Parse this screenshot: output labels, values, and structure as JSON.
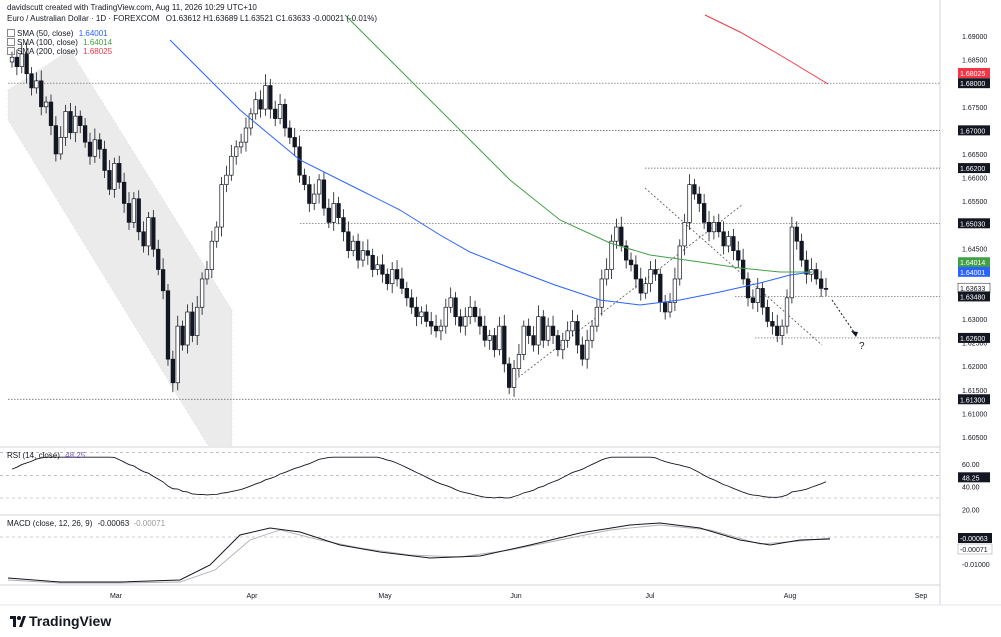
{
  "header": {
    "credit": "davidscutt created with TradingView.com, Aug 11, 2026 10:29 UTC+10",
    "symbol_line": "Euro / Australian Dollar · 1D · FOREXCOM",
    "ohlc": "O1.63612 H1.63689 L1.63521 C1.63633 -0.00021 (-0.01%)"
  },
  "indicators": [
    {
      "label": "SMA (50, close)",
      "value": "1.64001",
      "color": "#2962ff"
    },
    {
      "label": "SMA (100, close)",
      "value": "1.64014",
      "color": "#43a047"
    },
    {
      "label": "SMA (200, close)",
      "value": "1.68025",
      "color": "#f23645"
    }
  ],
  "rsi": {
    "label": "RSI (14, close)",
    "value": "48.25"
  },
  "macd": {
    "label": "MACD (close, 12, 26, 9)",
    "value1": "-0.00063",
    "value2": "-0.00071"
  },
  "logo": "TradingView",
  "question_mark": "?",
  "colors": {
    "up": "#ffffff",
    "down": "#131722",
    "sma50": "#2962ff",
    "sma100": "#43a047",
    "sma200": "#f23645",
    "grid": "#e6e6e6",
    "channel": "#e8e8e8"
  },
  "chart_data": {
    "type": "candlestick",
    "title": "Euro / Australian Dollar · 1D · FOREXCOM",
    "x_tick_labels": [
      "Mar",
      "Apr",
      "May",
      "Jun",
      "Jul",
      "Aug",
      "Sep"
    ],
    "y_tick_labels": [
      "1.69000",
      "1.68500",
      "1.68000",
      "1.67500",
      "1.67000",
      "1.66500",
      "1.66000",
      "1.65500",
      "1.65000",
      "1.64500",
      "1.64000",
      "1.63500",
      "1.63000",
      "1.62500",
      "1.62000",
      "1.61500",
      "1.61000",
      "1.60500"
    ],
    "ylim": [
      1.6025,
      1.6925
    ],
    "horizontal_levels": [
      1.68,
      1.67,
      1.662,
      1.6503,
      1.6348,
      1.626,
      1.613
    ],
    "price_labels": [
      {
        "text": "1.68025",
        "value": 1.68025,
        "color": "#f23645"
      },
      {
        "text": "1.68000",
        "value": 1.68,
        "color": "#131722"
      },
      {
        "text": "1.67000",
        "value": 1.67,
        "color": "#131722"
      },
      {
        "text": "1.66200",
        "value": 1.662,
        "color": "#131722"
      },
      {
        "text": "1.65030",
        "value": 1.6503,
        "color": "#131722"
      },
      {
        "text": "1.64014",
        "value": 1.64014,
        "color": "#43a047"
      },
      {
        "text": "1.64001",
        "value": 1.64001,
        "color": "#2962ff"
      },
      {
        "text": "1.63633",
        "value": 1.63633,
        "color": "#ffffff"
      },
      {
        "text": "1.63480",
        "value": 1.6348,
        "color": "#131722"
      },
      {
        "text": "1.62600",
        "value": 1.626,
        "color": "#131722"
      },
      {
        "text": "1.61300",
        "value": 1.613,
        "color": "#131722"
      }
    ],
    "last_close": 1.63633,
    "candle_closes": [
      1.6855,
      1.6835,
      1.6862,
      1.682,
      1.679,
      1.6805,
      1.675,
      1.676,
      1.671,
      1.665,
      1.6685,
      1.674,
      1.6695,
      1.673,
      1.671,
      1.6675,
      1.6645,
      1.668,
      1.666,
      1.6615,
      1.6575,
      1.663,
      1.659,
      1.6545,
      1.6505,
      1.6555,
      1.6485,
      1.6455,
      1.6515,
      1.6448,
      1.6405,
      1.636,
      1.6215,
      1.6165,
      1.6285,
      1.6245,
      1.6315,
      1.6265,
      1.6325,
      1.6385,
      1.6405,
      1.6465,
      1.6495,
      1.6585,
      1.6605,
      1.6645,
      1.6665,
      1.6675,
      1.6705,
      1.6735,
      1.6765,
      1.6745,
      1.6795,
      1.6745,
      1.6725,
      1.6755,
      1.6705,
      1.6685,
      1.6665,
      1.6605,
      1.6585,
      1.6545,
      1.6565,
      1.6595,
      1.6535,
      1.6505,
      1.6545,
      1.6515,
      1.6485,
      1.6445,
      1.6465,
      1.6425,
      1.6445,
      1.6435,
      1.6405,
      1.6415,
      1.6395,
      1.6375,
      1.6405,
      1.6385,
      1.6365,
      1.6345,
      1.6325,
      1.6305,
      1.6315,
      1.6295,
      1.6285,
      1.6275,
      1.6285,
      1.6325,
      1.6345,
      1.6305,
      1.6285,
      1.6305,
      1.6325,
      1.6305,
      1.6285,
      1.6255,
      1.6265,
      1.6235,
      1.6285,
      1.6205,
      1.6155,
      1.6195,
      1.6225,
      1.6285,
      1.6265,
      1.6245,
      1.6305,
      1.6255,
      1.6285,
      1.6265,
      1.6235,
      1.6255,
      1.6275,
      1.6295,
      1.6245,
      1.6215,
      1.6255,
      1.6285,
      1.6325,
      1.6385,
      1.6405,
      1.6465,
      1.6495,
      1.6455,
      1.6425,
      1.6415,
      1.6385,
      1.6355,
      1.6375,
      1.6405,
      1.6395,
      1.6335,
      1.6315,
      1.6335,
      1.6385,
      1.6455,
      1.6505,
      1.6585,
      1.6565,
      1.6545,
      1.6505,
      1.6485,
      1.6505,
      1.6485,
      1.6455,
      1.6475,
      1.6445,
      1.6425,
      1.6385,
      1.6345,
      1.6335,
      1.6365,
      1.6325,
      1.6295,
      1.6285,
      1.6265,
      1.6285,
      1.6345,
      1.6495,
      1.6465,
      1.6425,
      1.6395,
      1.6405,
      1.6385,
      1.6365,
      1.6363
    ],
    "series": [
      {
        "name": "SMA (50, close)",
        "color": "#2962ff",
        "last": 1.64001
      },
      {
        "name": "SMA (100, close)",
        "color": "#43a047",
        "last": 1.64014
      },
      {
        "name": "SMA (200, close)",
        "color": "#f23645",
        "last": 1.68025
      }
    ],
    "rsi_panel": {
      "name": "RSI (14, close)",
      "last": 48.25,
      "ticks": [
        20,
        40,
        60
      ],
      "bands": [
        30,
        50,
        70
      ]
    },
    "macd_panel": {
      "name": "MACD (close, 12, 26, 9)",
      "macd_last": -0.00063,
      "signal_last": -0.00071,
      "ticks": [
        "-0.01000"
      ]
    }
  }
}
